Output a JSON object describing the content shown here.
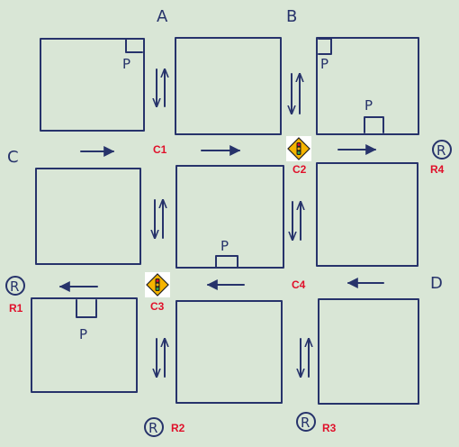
{
  "corners": {
    "a": "A",
    "b": "B",
    "c": "C",
    "d": "D"
  },
  "parking_symbol": "P",
  "roundabout_symbol": "R",
  "crossings": {
    "c1": "C1",
    "c2": "C2",
    "c3": "C3",
    "c4": "C4"
  },
  "roundabouts": {
    "r1": "R1",
    "r2": "R2",
    "r3": "R3",
    "r4": "R4"
  },
  "icons": {
    "traffic_signal": "traffic-light-sign-icon",
    "roundabout": "roundabout-icon",
    "parking": "parking-icon",
    "arrow": "one-way-arrow-icon"
  },
  "colors": {
    "paper": "#d9e6d6",
    "ink": "#27336b",
    "label_red": "#e0102a",
    "sign_yellow": "#f5b400"
  }
}
